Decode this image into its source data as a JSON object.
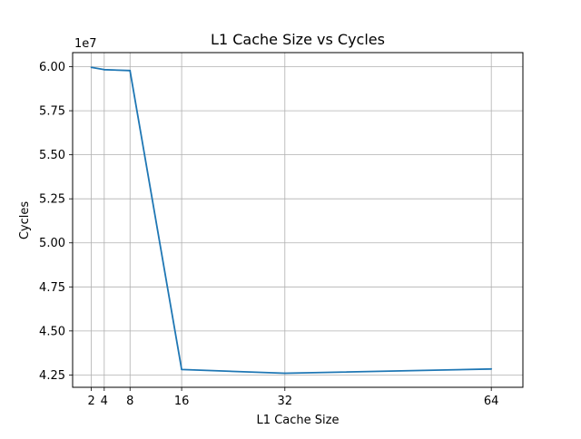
{
  "chart_data": {
    "type": "line",
    "title": "L1 Cache Size vs Cycles",
    "xlabel": "L1 Cache Size",
    "ylabel": "Cycles",
    "y_offset_label": "1e7",
    "x": [
      2,
      4,
      8,
      16,
      32,
      64
    ],
    "x_tick_labels": [
      "2",
      "4",
      "8",
      "16",
      "32",
      "64"
    ],
    "y_ticks": [
      4.25,
      4.5,
      4.75,
      5.0,
      5.25,
      5.5,
      5.75,
      6.0
    ],
    "y_tick_labels": [
      "4.25",
      "4.50",
      "4.75",
      "5.00",
      "5.25",
      "5.50",
      "5.75",
      "6.00"
    ],
    "xlim": [
      -0.9,
      68.9
    ],
    "ylim": [
      4.18,
      6.08
    ],
    "grid": true,
    "series": [
      {
        "color": "#1f77b4",
        "values": [
          5.996,
          5.983,
          5.978,
          4.281,
          4.26,
          4.284
        ]
      }
    ]
  }
}
